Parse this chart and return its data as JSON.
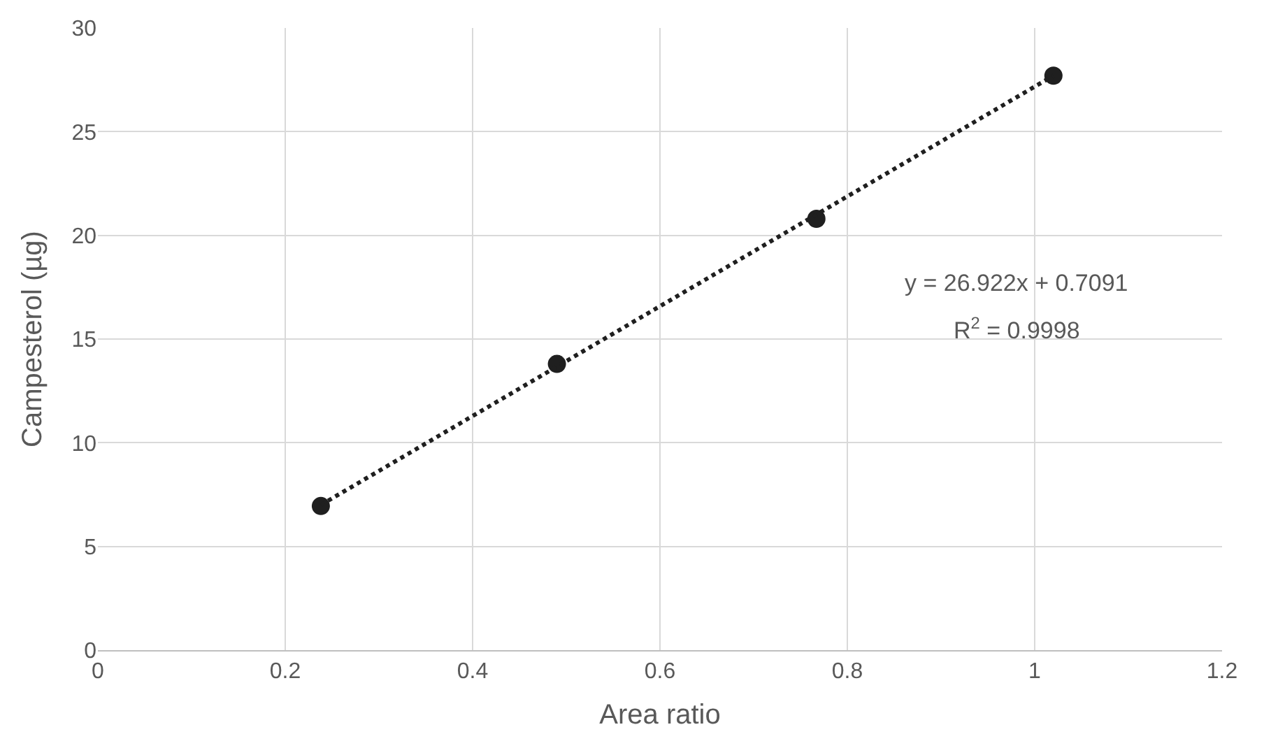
{
  "chart_data": {
    "type": "scatter",
    "xlabel": "Area ratio",
    "ylabel": "Campesterol (µg)",
    "xlim": [
      0,
      1.2
    ],
    "xticks": [
      0,
      0.2,
      0.4,
      0.6,
      0.8,
      1,
      1.2
    ],
    "ylim": [
      0,
      30
    ],
    "yticks": [
      0,
      5,
      10,
      15,
      20,
      25,
      30
    ],
    "grid": true,
    "marker": "circle",
    "x": [
      0.238,
      0.49,
      0.767,
      1.02
    ],
    "series": [
      {
        "color": "#1f1f1f",
        "values": [
          6.95,
          13.8,
          20.8,
          27.7
        ]
      },
      {
        "type": "line",
        "color": "#1f1f1f",
        "line_style": "dotted",
        "marker": "none",
        "x": [
          0.238,
          1.02
        ],
        "values": [
          7.0,
          27.7
        ]
      }
    ],
    "annotations": [
      "y = 26.922x + 0.7091",
      "R$^{2}$ = 0.9998"
    ]
  }
}
